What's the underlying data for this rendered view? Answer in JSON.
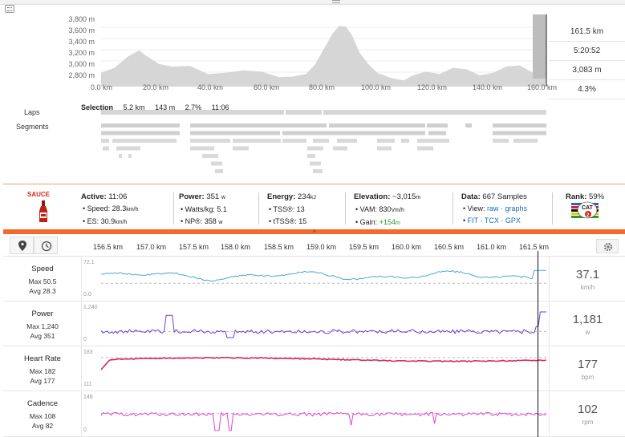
{
  "elevation": {
    "y_ticks": [
      "3,800 m",
      "3,600 m",
      "3,400 m",
      "3,200 m",
      "3,000 m",
      "2,800 m"
    ],
    "x_ticks": [
      "0.0 km",
      "20.0 km",
      "40.0 km",
      "60.0 km",
      "80.0 km",
      "100.0 km",
      "120.0 km",
      "140.0 km",
      "160.0 km"
    ],
    "stats": [
      "161.5 km",
      "5:20:52",
      "3,083 m",
      "4.3%"
    ],
    "fill_color": "#d6d6d6"
  },
  "selection": {
    "label": "Selection",
    "distance": "5.2 km",
    "elevation": "143 m",
    "grade": "2.7%",
    "time": "11:06"
  },
  "rows": {
    "laps": "Laps",
    "segments": "Segments"
  },
  "summary": {
    "logo": "SAUCE",
    "active_label": "Active:",
    "active_value": "11:06",
    "speed": "• Speed: 28.3",
    "speed_unit": "km/h",
    "es": "• ES: 30.9",
    "es_unit": "km/h",
    "power_label": "Power:",
    "power_value": "351",
    "power_unit": "w",
    "wkg": "• Watts/kg: 5.1",
    "np": "• NP®: 358",
    "np_unit": "w",
    "energy_label": "Energy:",
    "energy_value": "234",
    "energy_unit": "kJ",
    "tss": "• TSS®: 13",
    "ttss": "• tTSS®: 15",
    "elev_label": "Elevation:",
    "elev_value": "~3,015",
    "elev_unit": "m",
    "vam": "• VAM: 830",
    "vam_unit": "Vm/h",
    "gain_label": "• Gain:",
    "gain_value": "+154",
    "gain_unit": "m",
    "data_label": "Data:",
    "data_value": "667 Samples",
    "view_label": "• View:",
    "view_raw": "raw",
    "view_graphs": "graphs",
    "fit": "FIT",
    "tcx": "TCX",
    "gpx": "GPX",
    "rank_label": "Rank:",
    "rank_value": "59%",
    "cat_label": "CAT",
    "cat_num": "2"
  },
  "toolbar": {
    "x_ticks": [
      "156.5 km",
      "157.0 km",
      "157.5 km",
      "158.0 km",
      "158.5 km",
      "159.0 km",
      "159.5 km",
      "160.0 km",
      "160.5 km",
      "161.0 km",
      "161.5 km"
    ]
  },
  "charts": [
    {
      "name": "Speed",
      "max": "Max 50.5",
      "avg": "Avg 28.3",
      "top": "72.1",
      "bottom": "0.0",
      "value": "37.1",
      "unit": "km/h",
      "color": "#4aa8d8"
    },
    {
      "name": "Power",
      "max": "Max 1,240",
      "avg": "Avg 351",
      "top": "1,240",
      "bottom": "0",
      "value": "1,181",
      "unit": "w",
      "color": "#6b3fd0"
    },
    {
      "name": "Heart Rate",
      "max": "Max 182",
      "avg": "Avg 177",
      "top": "183",
      "bottom": "111",
      "value": "177",
      "unit": "bpm",
      "color": "#d8245a"
    },
    {
      "name": "Cadence",
      "max": "Max 108",
      "avg": "Avg 82",
      "top": "148",
      "bottom": "0",
      "value": "102",
      "unit": "rpm",
      "color": "#e040d8"
    }
  ]
}
